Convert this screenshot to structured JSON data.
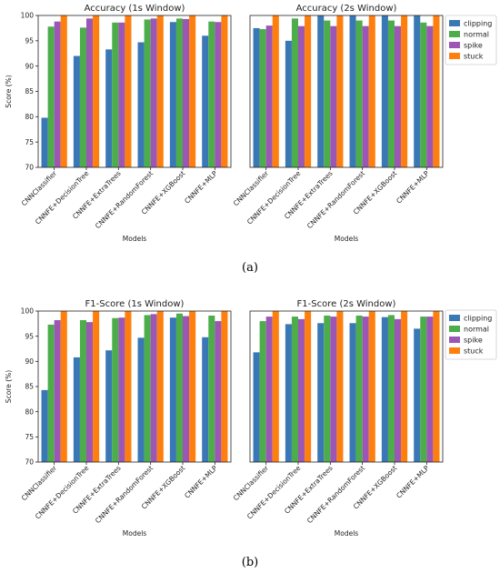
{
  "colors": {
    "clipping": "#3a78b5",
    "normal": "#4cad4a",
    "spike": "#9c57b5",
    "stuck": "#ff7f0e"
  },
  "legend": [
    "clipping",
    "normal",
    "spike",
    "stuck"
  ],
  "panel_labels": [
    "(a)",
    "(b)"
  ],
  "chart_data": [
    {
      "type": "bar",
      "title": "Accuracy (1s Window)",
      "xlabel": "Models",
      "ylabel": "Score (%)",
      "ylim": [
        70,
        100
      ],
      "yticks": [
        70,
        75,
        80,
        85,
        90,
        95,
        100
      ],
      "categories": [
        "CNNClassifier",
        "CNNFE+DecisionTree",
        "CNNFE+ExtraTrees",
        "CNNFE+RandomForest",
        "CNNFE+XGBoost",
        "CNNFE+MLP"
      ],
      "series": [
        {
          "name": "clipping",
          "values": [
            79.8,
            92.0,
            93.3,
            94.7,
            98.7,
            96.0
          ]
        },
        {
          "name": "normal",
          "values": [
            97.8,
            97.6,
            98.6,
            99.2,
            99.4,
            98.8
          ]
        },
        {
          "name": "spike",
          "values": [
            98.8,
            99.4,
            98.6,
            99.4,
            99.3,
            98.7
          ]
        },
        {
          "name": "stuck",
          "values": [
            100,
            100,
            100,
            100,
            100,
            100
          ]
        }
      ]
    },
    {
      "type": "bar",
      "title": "Accuracy (2s Window)",
      "xlabel": "Models",
      "ylabel": "",
      "ylim": [
        70,
        100
      ],
      "yticks": [],
      "categories": [
        "CNNClassifier",
        "CNNFE+DecisionTree",
        "CNNFE+ExtraTrees",
        "CNNFE+RandomForest",
        "CNNFE+XGBoost",
        "CNNFE+MLP"
      ],
      "series": [
        {
          "name": "clipping",
          "values": [
            97.5,
            95.0,
            100,
            100,
            100,
            100
          ]
        },
        {
          "name": "normal",
          "values": [
            97.3,
            99.4,
            99.0,
            99.0,
            99.0,
            98.6
          ]
        },
        {
          "name": "spike",
          "values": [
            98.0,
            97.9,
            97.9,
            97.9,
            97.9,
            97.9
          ]
        },
        {
          "name": "stuck",
          "values": [
            100,
            100,
            100,
            100,
            100,
            100
          ]
        }
      ]
    },
    {
      "type": "bar",
      "title": "F1-Score (1s Window)",
      "xlabel": "Models",
      "ylabel": "Score (%)",
      "ylim": [
        70,
        100
      ],
      "yticks": [
        70,
        75,
        80,
        85,
        90,
        95,
        100
      ],
      "categories": [
        "CNNClassifier",
        "CNNFE+DecisionTree",
        "CNNFE+ExtraTrees",
        "CNNFE+RandomForest",
        "CNNFE+XGBoost",
        "CNNFE+MLP"
      ],
      "series": [
        {
          "name": "clipping",
          "values": [
            84.3,
            90.8,
            92.2,
            94.7,
            98.7,
            94.8
          ]
        },
        {
          "name": "normal",
          "values": [
            97.3,
            98.2,
            98.6,
            99.2,
            99.5,
            99.1
          ]
        },
        {
          "name": "spike",
          "values": [
            98.2,
            97.8,
            98.7,
            99.4,
            99.0,
            98.0
          ]
        },
        {
          "name": "stuck",
          "values": [
            100,
            100,
            100,
            100,
            100,
            100
          ]
        }
      ]
    },
    {
      "type": "bar",
      "title": "F1-Score (2s Window)",
      "xlabel": "Models",
      "ylabel": "",
      "ylim": [
        70,
        100
      ],
      "yticks": [],
      "categories": [
        "CNNClassifier",
        "CNNFE+DecisionTree",
        "CNNFE+ExtraTrees",
        "CNNFE+RandomForest",
        "CNNFE+XGBoost",
        "CNNFE+MLP"
      ],
      "series": [
        {
          "name": "clipping",
          "values": [
            91.8,
            97.4,
            97.6,
            97.6,
            98.8,
            96.5
          ]
        },
        {
          "name": "normal",
          "values": [
            98.0,
            98.9,
            99.1,
            99.1,
            99.2,
            98.9
          ]
        },
        {
          "name": "spike",
          "values": [
            98.9,
            98.4,
            98.9,
            98.9,
            98.4,
            98.9
          ]
        },
        {
          "name": "stuck",
          "values": [
            100,
            100,
            100,
            100,
            100,
            100
          ]
        }
      ]
    }
  ]
}
